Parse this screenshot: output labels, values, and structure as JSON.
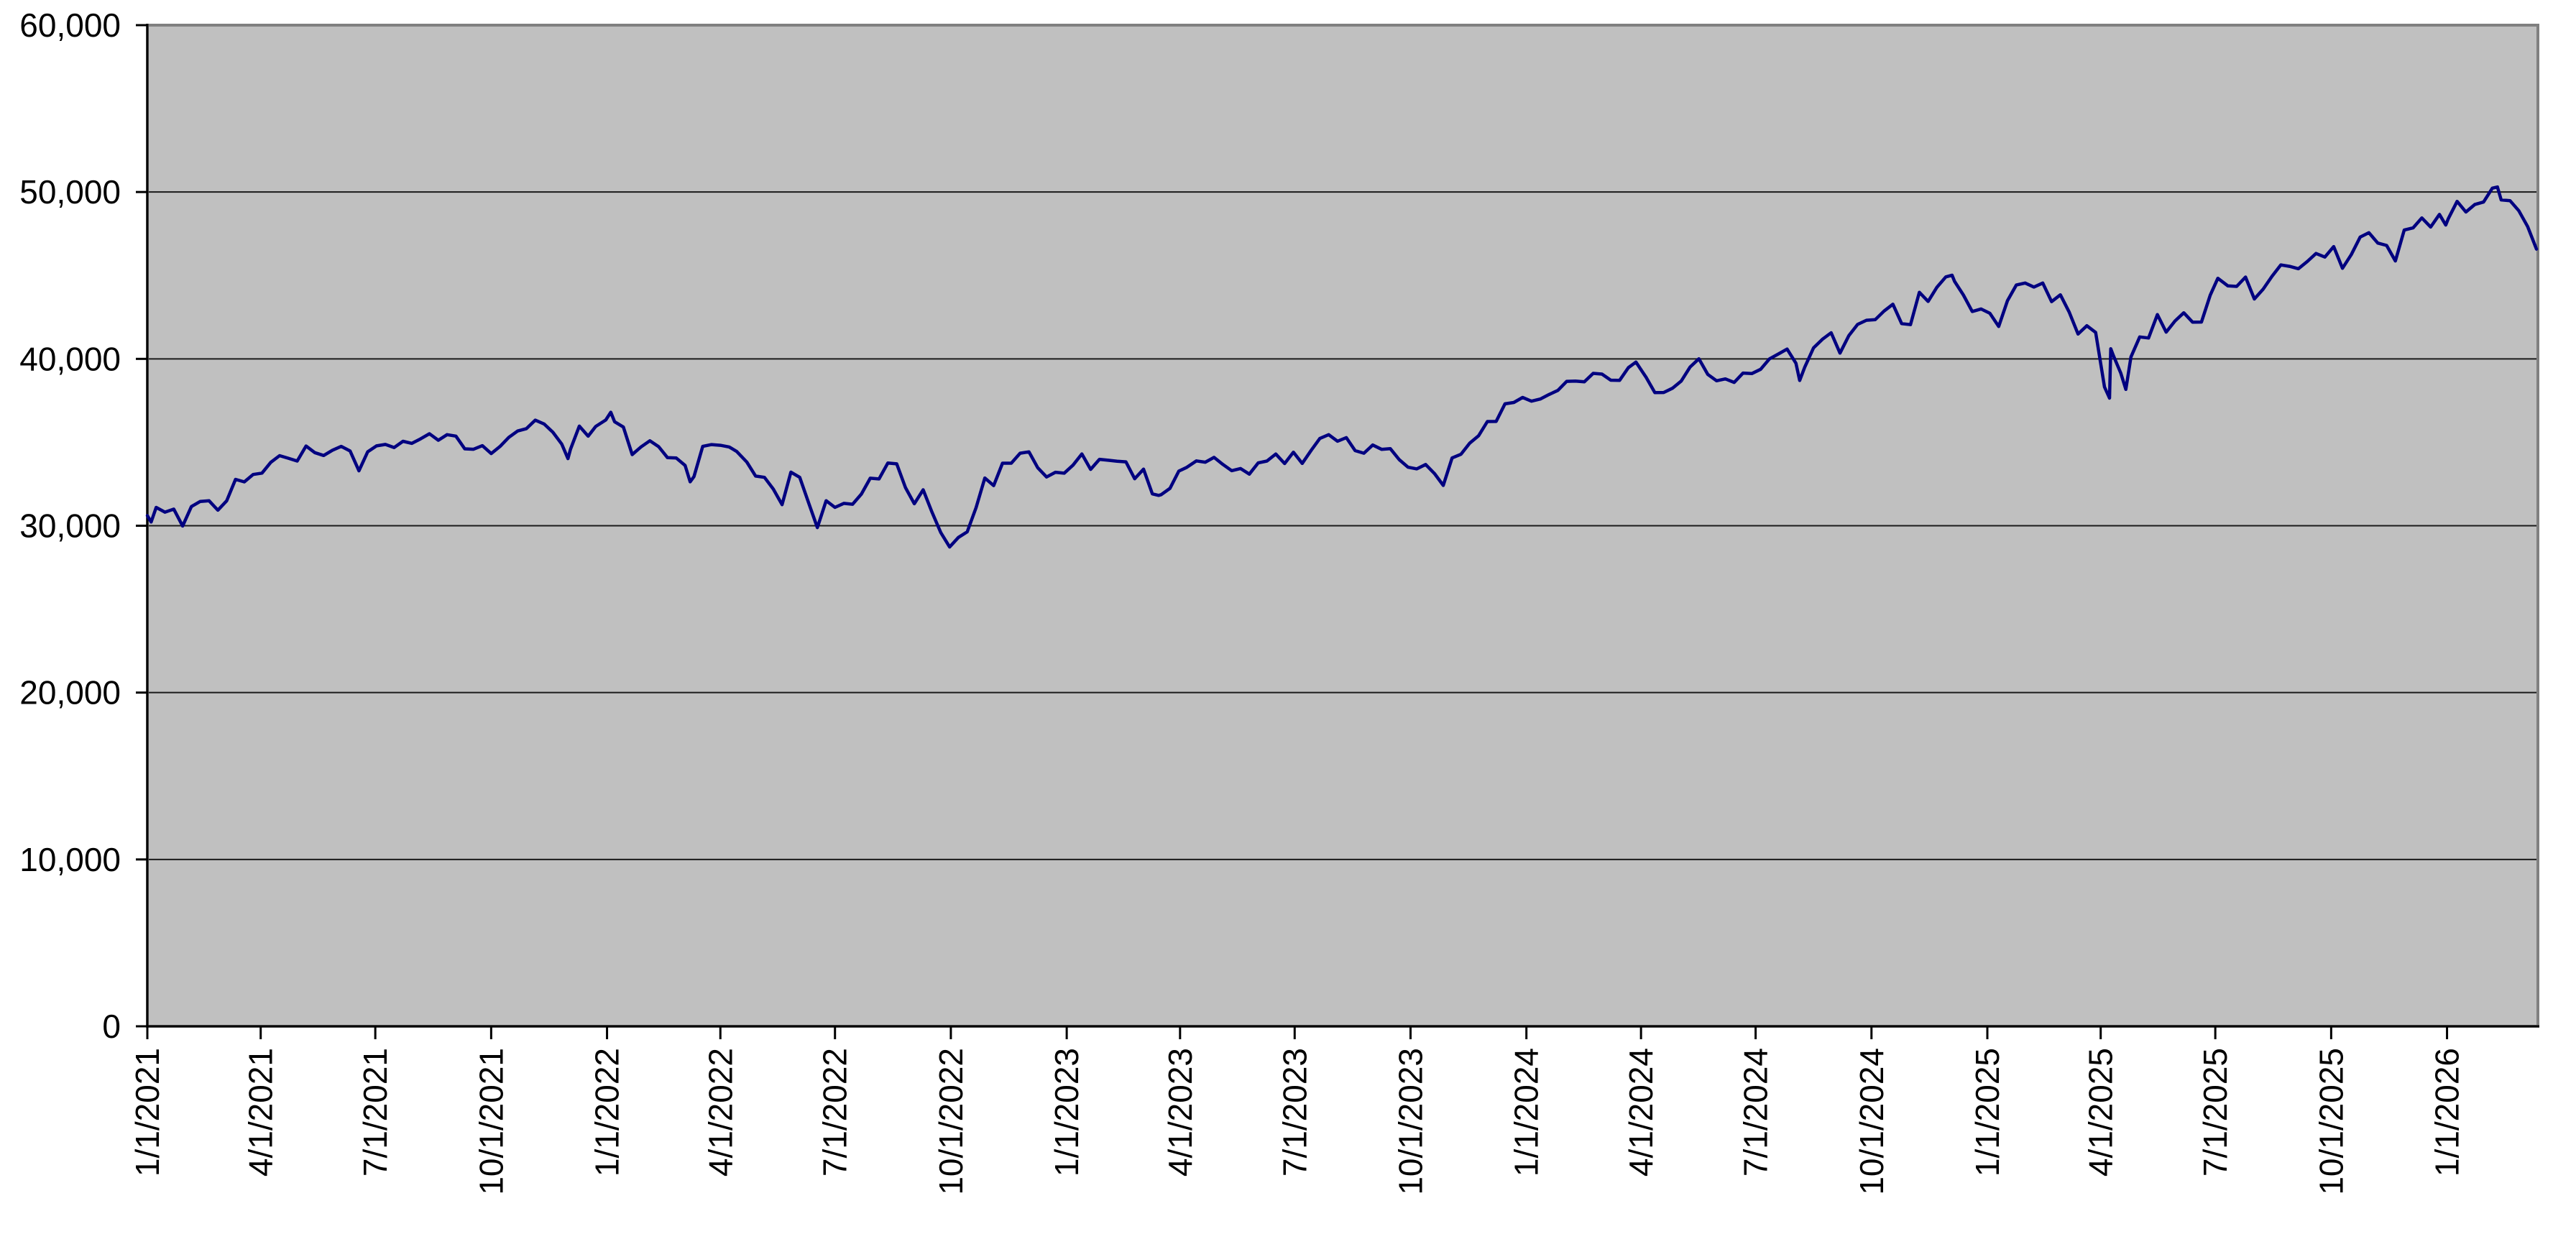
{
  "page": {
    "background": "#ffffff"
  },
  "chart_data": {
    "type": "line",
    "title": "",
    "xlabel": "",
    "ylabel": "",
    "ylim": [
      0,
      60000
    ],
    "grid": "horizontal-only",
    "legend": "none",
    "plot_background": "#c0c0c0",
    "plot_border_color": "#808080",
    "gridline_color": "#1a1a1a",
    "axis_color": "#000000",
    "text_color": "#000000",
    "line_color": "#000080",
    "y_tick_values": [
      0,
      10000,
      20000,
      30000,
      40000,
      50000,
      60000
    ],
    "y_tick_labels": [
      "0",
      "10,000",
      "20,000",
      "30,000",
      "40,000",
      "50,000",
      "60,000"
    ],
    "x_tick_labels": [
      "1/1/2021",
      "4/1/2021",
      "7/1/2021",
      "10/1/2021",
      "1/1/2022",
      "4/1/2022",
      "7/1/2022",
      "10/1/2022",
      "1/1/2023",
      "4/1/2023",
      "7/1/2023",
      "10/1/2023",
      "1/1/2024",
      "4/1/2024",
      "7/1/2024",
      "10/1/2024",
      "1/1/2025",
      "4/1/2025",
      "7/1/2025",
      "10/1/2025",
      "1/1/2026"
    ],
    "sampling": "approx-weekly closes read from plot",
    "points": [
      [
        "1/1/2021",
        30606
      ],
      [
        "1/4/2021",
        30224
      ],
      [
        "1/8/2021",
        31098
      ],
      [
        "1/15/2021",
        30814
      ],
      [
        "1/22/2021",
        30997
      ],
      [
        "1/29/2021",
        29983
      ],
      [
        "2/5/2021",
        31148
      ],
      [
        "2/12/2021",
        31458
      ],
      [
        "2/19/2021",
        31494
      ],
      [
        "2/26/2021",
        30932
      ],
      [
        "3/5/2021",
        31496
      ],
      [
        "3/12/2021",
        32779
      ],
      [
        "3/19/2021",
        32628
      ],
      [
        "3/26/2021",
        33073
      ],
      [
        "4/2/2021",
        33153
      ],
      [
        "4/9/2021",
        33800
      ],
      [
        "4/16/2021",
        34201
      ],
      [
        "4/23/2021",
        34043
      ],
      [
        "4/30/2021",
        33875
      ],
      [
        "5/7/2021",
        34778
      ],
      [
        "5/14/2021",
        34382
      ],
      [
        "5/21/2021",
        34208
      ],
      [
        "5/28/2021",
        34529
      ],
      [
        "6/4/2021",
        34756
      ],
      [
        "6/11/2021",
        34480
      ],
      [
        "6/18/2021",
        33290
      ],
      [
        "6/25/2021",
        34434
      ],
      [
        "7/2/2021",
        34786
      ],
      [
        "7/9/2021",
        34870
      ],
      [
        "7/16/2021",
        34688
      ],
      [
        "7/23/2021",
        35062
      ],
      [
        "7/30/2021",
        34935
      ],
      [
        "8/6/2021",
        35209
      ],
      [
        "8/13/2021",
        35515
      ],
      [
        "8/20/2021",
        35120
      ],
      [
        "8/27/2021",
        35456
      ],
      [
        "9/3/2021",
        35369
      ],
      [
        "9/10/2021",
        34608
      ],
      [
        "9/17/2021",
        34585
      ],
      [
        "9/24/2021",
        34798
      ],
      [
        "10/1/2021",
        34326
      ],
      [
        "10/8/2021",
        34746
      ],
      [
        "10/15/2021",
        35295
      ],
      [
        "10/22/2021",
        35677
      ],
      [
        "10/29/2021",
        35820
      ],
      [
        "11/5/2021",
        36328
      ],
      [
        "11/12/2021",
        36100
      ],
      [
        "11/19/2021",
        35602
      ],
      [
        "11/26/2021",
        34899
      ],
      [
        "12/1/2021",
        34022
      ],
      [
        "12/3/2021",
        34580
      ],
      [
        "12/10/2021",
        35971
      ],
      [
        "12/17/2021",
        35365
      ],
      [
        "12/23/2021",
        35950
      ],
      [
        "12/31/2021",
        36338
      ],
      [
        "1/4/2022",
        36800
      ],
      [
        "1/7/2022",
        36232
      ],
      [
        "1/14/2022",
        35912
      ],
      [
        "1/21/2022",
        34265
      ],
      [
        "1/28/2022",
        34725
      ],
      [
        "2/4/2022",
        35090
      ],
      [
        "2/11/2022",
        34738
      ],
      [
        "2/18/2022",
        34079
      ],
      [
        "2/25/2022",
        34059
      ],
      [
        "3/4/2022",
        33615
      ],
      [
        "3/8/2022",
        32632
      ],
      [
        "3/11/2022",
        32944
      ],
      [
        "3/18/2022",
        34755
      ],
      [
        "3/25/2022",
        34861
      ],
      [
        "4/1/2022",
        34818
      ],
      [
        "4/8/2022",
        34721
      ],
      [
        "4/14/2022",
        34451
      ],
      [
        "4/22/2022",
        33811
      ],
      [
        "4/29/2022",
        32977
      ],
      [
        "5/6/2022",
        32899
      ],
      [
        "5/13/2022",
        32197
      ],
      [
        "5/20/2022",
        31262
      ],
      [
        "5/27/2022",
        33213
      ],
      [
        "6/3/2022",
        32900
      ],
      [
        "6/10/2022",
        31393
      ],
      [
        "6/17/2022",
        29889
      ],
      [
        "6/24/2022",
        31501
      ],
      [
        "7/1/2022",
        31097
      ],
      [
        "7/8/2022",
        31338
      ],
      [
        "7/15/2022",
        31288
      ],
      [
        "7/22/2022",
        31899
      ],
      [
        "7/29/2022",
        32845
      ],
      [
        "8/5/2022",
        32803
      ],
      [
        "8/12/2022",
        33761
      ],
      [
        "8/19/2022",
        33707
      ],
      [
        "8/26/2022",
        32283
      ],
      [
        "9/2/2022",
        31318
      ],
      [
        "9/9/2022",
        32152
      ],
      [
        "9/16/2022",
        30822
      ],
      [
        "9/23/2022",
        29590
      ],
      [
        "9/30/2022",
        28726
      ],
      [
        "10/7/2022",
        29297
      ],
      [
        "10/14/2022",
        29635
      ],
      [
        "10/21/2022",
        31083
      ],
      [
        "10/28/2022",
        32862
      ],
      [
        "11/4/2022",
        32403
      ],
      [
        "11/11/2022",
        33748
      ],
      [
        "11/18/2022",
        33746
      ],
      [
        "11/25/2022",
        34347
      ],
      [
        "12/2/2022",
        34430
      ],
      [
        "12/9/2022",
        33476
      ],
      [
        "12/16/2022",
        32920
      ],
      [
        "12/23/2022",
        33204
      ],
      [
        "12/30/2022",
        33147
      ],
      [
        "1/6/2023",
        33631
      ],
      [
        "1/13/2023",
        34303
      ],
      [
        "1/20/2023",
        33375
      ],
      [
        "1/27/2023",
        33978
      ],
      [
        "2/3/2023",
        33926
      ],
      [
        "2/10/2023",
        33869
      ],
      [
        "2/17/2023",
        33827
      ],
      [
        "2/24/2023",
        32817
      ],
      [
        "3/3/2023",
        33391
      ],
      [
        "3/10/2023",
        31910
      ],
      [
        "3/15/2023",
        31819
      ],
      [
        "3/17/2023",
        31862
      ],
      [
        "3/24/2023",
        32238
      ],
      [
        "3/31/2023",
        33274
      ],
      [
        "4/6/2023",
        33485
      ],
      [
        "4/14/2023",
        33886
      ],
      [
        "4/21/2023",
        33809
      ],
      [
        "4/28/2023",
        34098
      ],
      [
        "5/5/2023",
        33674
      ],
      [
        "5/12/2023",
        33301
      ],
      [
        "5/19/2023",
        33427
      ],
      [
        "5/26/2023",
        33093
      ],
      [
        "6/2/2023",
        33763
      ],
      [
        "6/9/2023",
        33877
      ],
      [
        "6/16/2023",
        34299
      ],
      [
        "6/23/2023",
        33727
      ],
      [
        "6/30/2023",
        34408
      ],
      [
        "7/7/2023",
        33735
      ],
      [
        "7/14/2023",
        34509
      ],
      [
        "7/21/2023",
        35228
      ],
      [
        "7/28/2023",
        35459
      ],
      [
        "8/4/2023",
        35066
      ],
      [
        "8/11/2023",
        35281
      ],
      [
        "8/18/2023",
        34501
      ],
      [
        "8/25/2023",
        34347
      ],
      [
        "9/1/2023",
        34838
      ],
      [
        "9/8/2023",
        34577
      ],
      [
        "9/15/2023",
        34618
      ],
      [
        "9/22/2023",
        33964
      ],
      [
        "9/29/2023",
        33508
      ],
      [
        "10/6/2023",
        33408
      ],
      [
        "10/13/2023",
        33670
      ],
      [
        "10/20/2023",
        33127
      ],
      [
        "10/27/2023",
        32418
      ],
      [
        "11/3/2023",
        34061
      ],
      [
        "11/10/2023",
        34283
      ],
      [
        "11/17/2023",
        34947
      ],
      [
        "11/24/2023",
        35390
      ],
      [
        "12/1/2023",
        36246
      ],
      [
        "12/8/2023",
        36248
      ],
      [
        "12/15/2023",
        37305
      ],
      [
        "12/22/2023",
        37386
      ],
      [
        "12/29/2023",
        37690
      ],
      [
        "1/5/2024",
        37466
      ],
      [
        "1/12/2024",
        37593
      ],
      [
        "1/19/2024",
        37864
      ],
      [
        "1/26/2024",
        38109
      ],
      [
        "2/2/2024",
        38654
      ],
      [
        "2/9/2024",
        38672
      ],
      [
        "2/16/2024",
        38628
      ],
      [
        "2/23/2024",
        39132
      ],
      [
        "3/1/2024",
        39087
      ],
      [
        "3/8/2024",
        38723
      ],
      [
        "3/15/2024",
        38715
      ],
      [
        "3/22/2024",
        39476
      ],
      [
        "3/28/2024",
        39807
      ],
      [
        "4/5/2024",
        38904
      ],
      [
        "4/12/2024",
        37983
      ],
      [
        "4/19/2024",
        37986
      ],
      [
        "4/26/2024",
        38240
      ],
      [
        "5/3/2024",
        38676
      ],
      [
        "5/10/2024",
        39513
      ],
      [
        "5/17/2024",
        40004
      ],
      [
        "5/24/2024",
        39070
      ],
      [
        "5/31/2024",
        38686
      ],
      [
        "6/7/2024",
        38799
      ],
      [
        "6/14/2024",
        38589
      ],
      [
        "6/21/2024",
        39150
      ],
      [
        "6/28/2024",
        39119
      ],
      [
        "7/5/2024",
        39376
      ],
      [
        "7/12/2024",
        40001
      ],
      [
        "7/19/2024",
        40288
      ],
      [
        "7/26/2024",
        40589
      ],
      [
        "8/2/2024",
        39737
      ],
      [
        "8/5/2024",
        38703
      ],
      [
        "8/9/2024",
        39498
      ],
      [
        "8/16/2024",
        40660
      ],
      [
        "8/23/2024",
        41175
      ],
      [
        "8/30/2024",
        41563
      ],
      [
        "9/6/2024",
        40345
      ],
      [
        "9/13/2024",
        41394
      ],
      [
        "9/20/2024",
        42063
      ],
      [
        "9/27/2024",
        42313
      ],
      [
        "10/4/2024",
        42353
      ],
      [
        "10/11/2024",
        42864
      ],
      [
        "10/18/2024",
        43276
      ],
      [
        "10/25/2024",
        42114
      ],
      [
        "11/1/2024",
        42052
      ],
      [
        "11/8/2024",
        43989
      ],
      [
        "11/15/2024",
        43445
      ],
      [
        "11/22/2024",
        44297
      ],
      [
        "11/29/2024",
        44911
      ],
      [
        "12/4/2024",
        45014
      ],
      [
        "12/6/2024",
        44643
      ],
      [
        "12/13/2024",
        43828
      ],
      [
        "12/20/2024",
        42840
      ],
      [
        "12/27/2024",
        42992
      ],
      [
        "1/3/2025",
        42732
      ],
      [
        "1/10/2025",
        41938
      ],
      [
        "1/17/2025",
        43488
      ],
      [
        "1/24/2025",
        44424
      ],
      [
        "1/31/2025",
        44545
      ],
      [
        "2/7/2025",
        44303
      ],
      [
        "2/14/2025",
        44546
      ],
      [
        "2/21/2025",
        43428
      ],
      [
        "2/28/2025",
        43841
      ],
      [
        "3/7/2025",
        42802
      ],
      [
        "3/14/2025",
        41488
      ],
      [
        "3/21/2025",
        41985
      ],
      [
        "3/28/2025",
        41584
      ],
      [
        "4/4/2025",
        38315
      ],
      [
        "4/8/2025",
        37646
      ],
      [
        "4/9/2025",
        40608
      ],
      [
        "4/11/2025",
        40213
      ],
      [
        "4/17/2025",
        39142
      ],
      [
        "4/21/2025",
        38170
      ],
      [
        "4/25/2025",
        40114
      ],
      [
        "5/2/2025",
        41317
      ],
      [
        "5/9/2025",
        41249
      ],
      [
        "5/16/2025",
        42655
      ],
      [
        "5/23/2025",
        41603
      ],
      [
        "5/30/2025",
        42270
      ],
      [
        "6/6/2025",
        42763
      ],
      [
        "6/13/2025",
        42198
      ],
      [
        "6/20/2025",
        42207
      ],
      [
        "6/27/2025",
        43819
      ],
      [
        "7/3/2025",
        44829
      ],
      [
        "7/11/2025",
        44372
      ],
      [
        "7/18/2025",
        44342
      ],
      [
        "7/25/2025",
        44902
      ],
      [
        "8/1/2025",
        43589
      ],
      [
        "8/8/2025",
        44176
      ],
      [
        "8/15/2025",
        44946
      ],
      [
        "8/22/2025",
        45632
      ],
      [
        "8/29/2025",
        45545
      ],
      [
        "9/5/2025",
        45401
      ],
      [
        "9/12/2025",
        45834
      ],
      [
        "9/19/2025",
        46315
      ],
      [
        "9/26/2025",
        46100
      ],
      [
        "10/3/2025",
        46730
      ],
      [
        "10/10/2025",
        45430
      ],
      [
        "10/17/2025",
        46250
      ],
      [
        "10/24/2025",
        47300
      ],
      [
        "10/31/2025",
        47560
      ],
      [
        "11/7/2025",
        46940
      ],
      [
        "11/14/2025",
        46800
      ],
      [
        "11/21/2025",
        45870
      ],
      [
        "11/28/2025",
        47720
      ],
      [
        "12/5/2025",
        47850
      ],
      [
        "12/12/2025",
        48450
      ],
      [
        "12/19/2025",
        47900
      ],
      [
        "12/26/2025",
        48660
      ],
      [
        "12/31/2025",
        48020
      ],
      [
        "1/2/2026",
        48400
      ],
      [
        "1/9/2026",
        49440
      ],
      [
        "1/16/2026",
        48800
      ],
      [
        "1/23/2026",
        49250
      ],
      [
        "1/30/2026",
        49400
      ],
      [
        "2/6/2026",
        50230
      ],
      [
        "2/10/2026",
        50300
      ],
      [
        "2/13/2026",
        49530
      ],
      [
        "2/20/2026",
        49480
      ],
      [
        "2/27/2026",
        48880
      ],
      [
        "3/6/2026",
        47930
      ],
      [
        "3/13/2026",
        46580
      ]
    ]
  }
}
